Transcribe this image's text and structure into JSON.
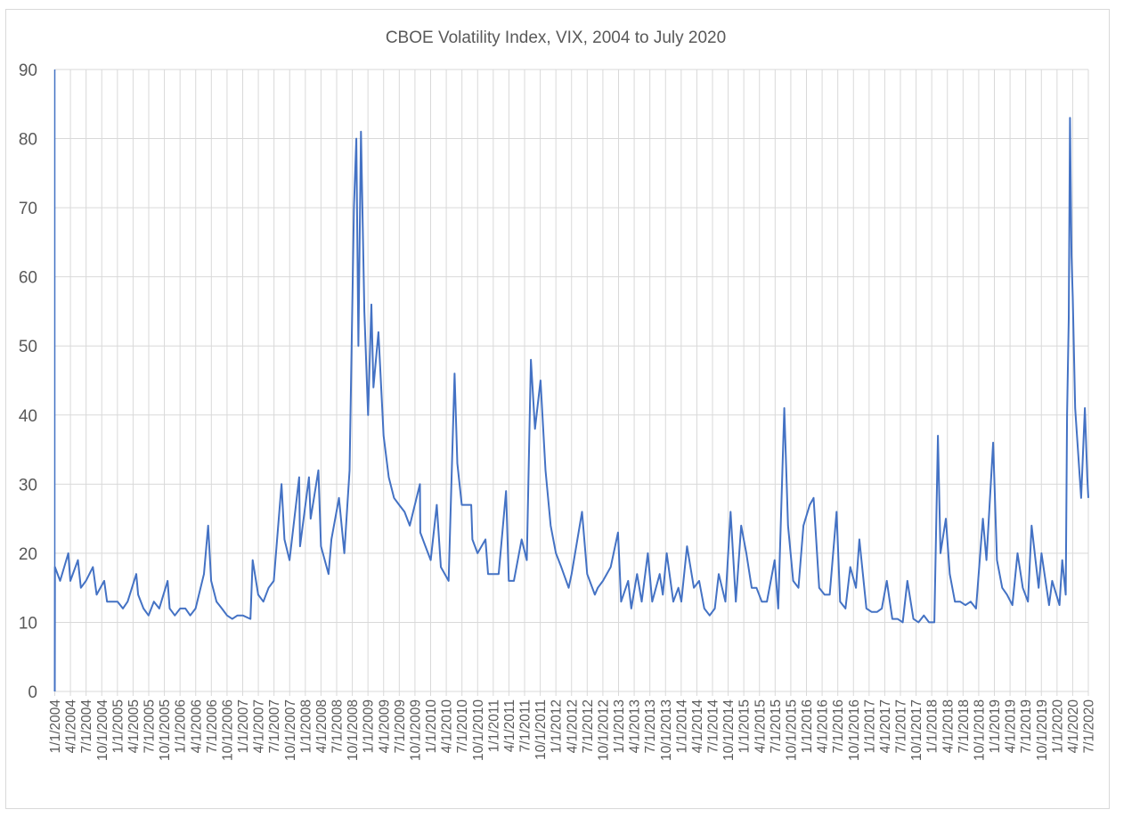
{
  "chart_data": {
    "type": "line",
    "title": "CBOE Volatility Index, VIX, 2004 to July 2020",
    "xlabel": "",
    "ylabel": "",
    "ylim": [
      0,
      90
    ],
    "yticks": [
      0,
      10,
      20,
      30,
      40,
      50,
      60,
      70,
      80,
      90
    ],
    "xlim": [
      "2004-01-01",
      "2020-07-01"
    ],
    "xtick_labels": [
      "1/1/2004",
      "4/1/2004",
      "7/1/2004",
      "10/1/2004",
      "1/1/2005",
      "4/1/2005",
      "7/1/2005",
      "10/1/2005",
      "1/1/2006",
      "4/1/2006",
      "7/1/2006",
      "10/1/2006",
      "1/1/2007",
      "4/1/2007",
      "7/1/2007",
      "10/1/2007",
      "1/1/2008",
      "4/1/2008",
      "7/1/2008",
      "10/1/2008",
      "1/1/2009",
      "4/1/2009",
      "7/1/2009",
      "10/1/2009",
      "1/1/2010",
      "4/1/2010",
      "7/1/2010",
      "10/1/2010",
      "1/1/2011",
      "4/1/2011",
      "7/1/2011",
      "10/1/2011",
      "1/1/2012",
      "4/1/2012",
      "7/1/2012",
      "10/1/2012",
      "1/1/2013",
      "4/1/2013",
      "7/1/2013",
      "10/1/2013",
      "1/1/2014",
      "4/1/2014",
      "7/1/2014",
      "10/1/2014",
      "1/1/2015",
      "4/1/2015",
      "7/1/2015",
      "10/1/2015",
      "1/1/2016",
      "4/1/2016",
      "7/1/2016",
      "10/1/2016",
      "1/1/2017",
      "4/1/2017",
      "7/1/2017",
      "10/1/2017",
      "1/1/2018",
      "4/1/2018",
      "7/1/2018",
      "10/1/2018",
      "1/1/2019",
      "4/1/2019",
      "7/1/2019",
      "10/1/2019",
      "1/1/2020",
      "4/1/2020",
      "7/1/2020"
    ],
    "grid": true,
    "legend": "none",
    "series_color": "#4472C4",
    "points": [
      [
        "2004-01-02",
        18
      ],
      [
        "2004-02-01",
        16
      ],
      [
        "2004-03-20",
        20
      ],
      [
        "2004-04-01",
        16
      ],
      [
        "2004-05-15",
        19
      ],
      [
        "2004-06-01",
        15
      ],
      [
        "2004-07-01",
        16
      ],
      [
        "2004-08-10",
        18
      ],
      [
        "2004-09-01",
        14
      ],
      [
        "2004-10-15",
        16
      ],
      [
        "2004-11-01",
        13
      ],
      [
        "2004-12-01",
        13
      ],
      [
        "2005-01-01",
        13
      ],
      [
        "2005-02-01",
        12
      ],
      [
        "2005-03-01",
        13
      ],
      [
        "2005-04-20",
        17
      ],
      [
        "2005-05-01",
        14
      ],
      [
        "2005-06-01",
        12
      ],
      [
        "2005-07-01",
        11
      ],
      [
        "2005-08-01",
        13
      ],
      [
        "2005-09-01",
        12
      ],
      [
        "2005-10-20",
        16
      ],
      [
        "2005-11-01",
        12
      ],
      [
        "2005-12-01",
        11
      ],
      [
        "2006-01-01",
        12
      ],
      [
        "2006-02-01",
        12
      ],
      [
        "2006-03-01",
        11
      ],
      [
        "2006-04-01",
        12
      ],
      [
        "2006-05-20",
        17
      ],
      [
        "2006-06-13",
        24
      ],
      [
        "2006-07-01",
        16
      ],
      [
        "2006-08-01",
        13
      ],
      [
        "2006-09-01",
        12
      ],
      [
        "2006-10-01",
        11
      ],
      [
        "2006-11-01",
        10.5
      ],
      [
        "2006-12-01",
        11
      ],
      [
        "2007-01-01",
        11
      ],
      [
        "2007-02-15",
        10.5
      ],
      [
        "2007-02-28",
        19
      ],
      [
        "2007-04-01",
        14
      ],
      [
        "2007-05-01",
        13
      ],
      [
        "2007-06-01",
        15
      ],
      [
        "2007-07-01",
        16
      ],
      [
        "2007-08-15",
        30
      ],
      [
        "2007-09-01",
        22
      ],
      [
        "2007-10-01",
        19
      ],
      [
        "2007-11-26",
        31
      ],
      [
        "2007-12-01",
        21
      ],
      [
        "2008-01-22",
        31
      ],
      [
        "2008-02-01",
        25
      ],
      [
        "2008-03-17",
        32
      ],
      [
        "2008-04-01",
        21
      ],
      [
        "2008-05-15",
        17
      ],
      [
        "2008-06-01",
        22
      ],
      [
        "2008-07-15",
        28
      ],
      [
        "2008-08-15",
        20
      ],
      [
        "2008-09-15",
        32
      ],
      [
        "2008-10-10",
        70
      ],
      [
        "2008-10-24",
        80
      ],
      [
        "2008-11-05",
        50
      ],
      [
        "2008-11-20",
        81
      ],
      [
        "2008-12-10",
        55
      ],
      [
        "2009-01-01",
        40
      ],
      [
        "2009-01-20",
        56
      ],
      [
        "2009-02-01",
        44
      ],
      [
        "2009-03-02",
        52
      ],
      [
        "2009-04-01",
        37
      ],
      [
        "2009-05-01",
        31
      ],
      [
        "2009-06-01",
        28
      ],
      [
        "2009-07-01",
        27
      ],
      [
        "2009-08-01",
        26
      ],
      [
        "2009-09-01",
        24
      ],
      [
        "2009-10-30",
        30
      ],
      [
        "2009-11-01",
        23
      ],
      [
        "2009-12-01",
        21
      ],
      [
        "2010-01-01",
        19
      ],
      [
        "2010-02-05",
        27
      ],
      [
        "2010-03-01",
        18
      ],
      [
        "2010-04-15",
        16
      ],
      [
        "2010-05-20",
        46
      ],
      [
        "2010-06-05",
        33
      ],
      [
        "2010-07-01",
        27
      ],
      [
        "2010-08-25",
        27
      ],
      [
        "2010-09-01",
        22
      ],
      [
        "2010-10-01",
        20
      ],
      [
        "2010-11-16",
        22
      ],
      [
        "2010-12-01",
        17
      ],
      [
        "2011-01-01",
        17
      ],
      [
        "2011-02-01",
        17
      ],
      [
        "2011-03-16",
        29
      ],
      [
        "2011-04-01",
        16
      ],
      [
        "2011-05-01",
        16
      ],
      [
        "2011-06-15",
        22
      ],
      [
        "2011-07-15",
        19
      ],
      [
        "2011-08-08",
        48
      ],
      [
        "2011-09-01",
        38
      ],
      [
        "2011-10-03",
        45
      ],
      [
        "2011-11-01",
        32
      ],
      [
        "2011-12-01",
        24
      ],
      [
        "2012-01-01",
        20
      ],
      [
        "2012-02-01",
        18
      ],
      [
        "2012-03-15",
        15
      ],
      [
        "2012-04-01",
        17
      ],
      [
        "2012-06-01",
        26
      ],
      [
        "2012-07-01",
        17
      ],
      [
        "2012-08-15",
        14
      ],
      [
        "2012-09-01",
        15
      ],
      [
        "2012-10-01",
        16
      ],
      [
        "2012-11-15",
        18
      ],
      [
        "2012-12-28",
        23
      ],
      [
        "2013-01-15",
        13
      ],
      [
        "2013-02-25",
        16
      ],
      [
        "2013-03-15",
        12
      ],
      [
        "2013-04-18",
        17
      ],
      [
        "2013-05-15",
        13
      ],
      [
        "2013-06-20",
        20
      ],
      [
        "2013-07-15",
        13
      ],
      [
        "2013-08-28",
        17
      ],
      [
        "2013-09-15",
        14
      ],
      [
        "2013-10-08",
        20
      ],
      [
        "2013-11-15",
        13
      ],
      [
        "2013-12-15",
        15
      ],
      [
        "2014-01-01",
        13
      ],
      [
        "2014-02-03",
        21
      ],
      [
        "2014-03-15",
        15
      ],
      [
        "2014-04-15",
        16
      ],
      [
        "2014-05-15",
        12
      ],
      [
        "2014-06-15",
        11
      ],
      [
        "2014-07-15",
        12
      ],
      [
        "2014-08-07",
        17
      ],
      [
        "2014-09-15",
        13
      ],
      [
        "2014-10-15",
        26
      ],
      [
        "2014-11-15",
        13
      ],
      [
        "2014-12-16",
        24
      ],
      [
        "2015-01-15",
        20
      ],
      [
        "2015-02-15",
        15
      ],
      [
        "2015-03-15",
        15
      ],
      [
        "2015-04-15",
        13
      ],
      [
        "2015-05-15",
        13
      ],
      [
        "2015-06-29",
        19
      ],
      [
        "2015-07-20",
        12
      ],
      [
        "2015-08-24",
        41
      ],
      [
        "2015-09-15",
        24
      ],
      [
        "2015-10-15",
        16
      ],
      [
        "2015-11-15",
        15
      ],
      [
        "2015-12-14",
        24
      ],
      [
        "2016-01-20",
        27
      ],
      [
        "2016-02-11",
        28
      ],
      [
        "2016-03-15",
        15
      ],
      [
        "2016-04-15",
        14
      ],
      [
        "2016-05-15",
        14
      ],
      [
        "2016-06-24",
        26
      ],
      [
        "2016-07-15",
        13
      ],
      [
        "2016-08-15",
        12
      ],
      [
        "2016-09-12",
        18
      ],
      [
        "2016-10-15",
        15
      ],
      [
        "2016-11-04",
        22
      ],
      [
        "2016-12-15",
        12
      ],
      [
        "2017-01-15",
        11.5
      ],
      [
        "2017-02-15",
        11.5
      ],
      [
        "2017-03-15",
        12
      ],
      [
        "2017-04-13",
        16
      ],
      [
        "2017-05-15",
        10.5
      ],
      [
        "2017-06-15",
        10.5
      ],
      [
        "2017-07-15",
        10
      ],
      [
        "2017-08-11",
        16
      ],
      [
        "2017-09-15",
        10.5
      ],
      [
        "2017-10-15",
        10
      ],
      [
        "2017-11-15",
        11
      ],
      [
        "2017-12-15",
        10
      ],
      [
        "2018-01-15",
        10
      ],
      [
        "2018-02-05",
        37
      ],
      [
        "2018-02-20",
        20
      ],
      [
        "2018-03-23",
        25
      ],
      [
        "2018-04-15",
        17
      ],
      [
        "2018-05-15",
        13
      ],
      [
        "2018-06-15",
        13
      ],
      [
        "2018-07-15",
        12.5
      ],
      [
        "2018-08-15",
        13
      ],
      [
        "2018-09-15",
        12
      ],
      [
        "2018-10-25",
        25
      ],
      [
        "2018-11-15",
        19
      ],
      [
        "2018-12-24",
        36
      ],
      [
        "2019-01-15",
        19
      ],
      [
        "2019-02-15",
        15
      ],
      [
        "2019-03-15",
        14
      ],
      [
        "2019-04-15",
        12.5
      ],
      [
        "2019-05-15",
        20
      ],
      [
        "2019-06-15",
        15
      ],
      [
        "2019-07-15",
        13
      ],
      [
        "2019-08-05",
        24
      ],
      [
        "2019-09-15",
        15
      ],
      [
        "2019-10-02",
        20
      ],
      [
        "2019-11-15",
        12.5
      ],
      [
        "2019-12-03",
        16
      ],
      [
        "2020-01-15",
        12.5
      ],
      [
        "2020-01-31",
        19
      ],
      [
        "2020-02-20",
        14
      ],
      [
        "2020-02-28",
        40
      ],
      [
        "2020-03-09",
        54
      ],
      [
        "2020-03-16",
        83
      ],
      [
        "2020-03-25",
        63
      ],
      [
        "2020-04-01",
        57
      ],
      [
        "2020-04-15",
        41
      ],
      [
        "2020-05-01",
        35
      ],
      [
        "2020-05-20",
        28
      ],
      [
        "2020-06-11",
        41
      ],
      [
        "2020-06-25",
        31
      ],
      [
        "2020-07-01",
        28
      ]
    ]
  }
}
